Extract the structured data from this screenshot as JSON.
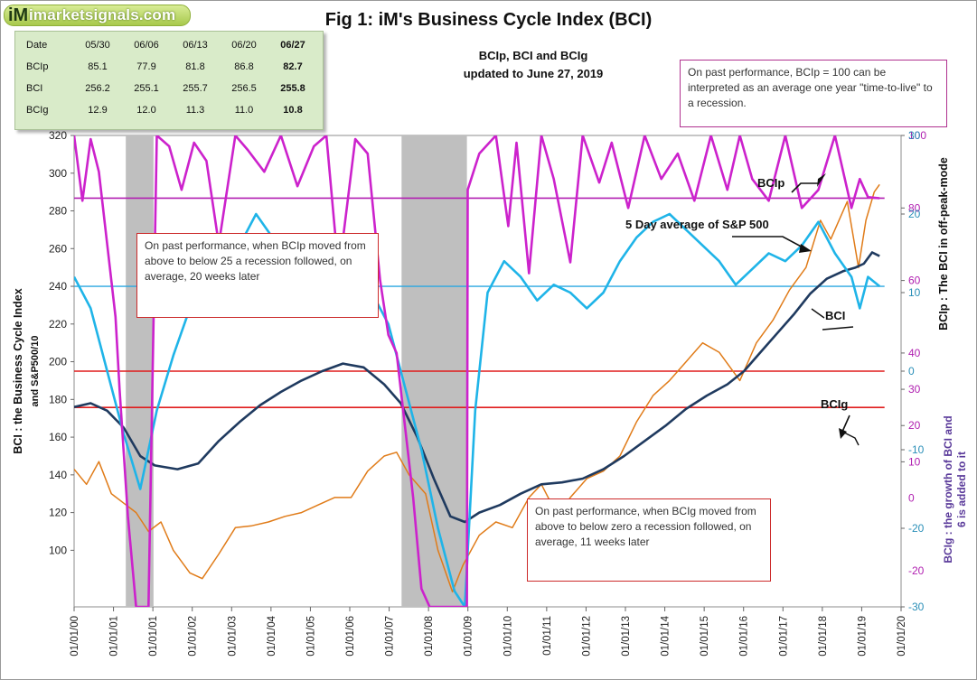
{
  "brand": {
    "logo_mark": "iM",
    "site_name": "imarketsignals.com"
  },
  "title": "Fig 1:  iM's Business Cycle Index (BCI)",
  "subtitle_line1": "BCIp, BCI and BCIg",
  "subtitle_line2": "updated to June 27, 2019",
  "data_table": {
    "header": [
      "Date",
      "05/30",
      "06/06",
      "06/13",
      "06/20",
      "06/27"
    ],
    "rows": [
      {
        "label": "BCIp",
        "values": [
          "85.1",
          "77.9",
          "81.8",
          "86.8",
          "82.7"
        ]
      },
      {
        "label": "BCI",
        "values": [
          "256.2",
          "255.1",
          "255.7",
          "256.5",
          "255.8"
        ]
      },
      {
        "label": "BCIg",
        "values": [
          "12.9",
          "12.0",
          "11.3",
          "11.0",
          "10.8"
        ]
      }
    ]
  },
  "notes": {
    "top_right": "On past performance, BCIp = 100  can be interpreted as an average one year \"time-to-live\" to a recession.",
    "left": "On past performance,  when BCIp moved from above to below 25 a recession followed, on average, 20 weeks later",
    "bottom": "On past performance,  when BCIg moved from above to below zero a recession followed, on average, 11 weeks later"
  },
  "annotations": {
    "bcip": "BCIp",
    "sp500": "5 Day average of  S&P 500",
    "bci": "BCI",
    "bcig": "BCIg"
  },
  "colors": {
    "bci": "#1f3a5f",
    "bcip": "#cc22cc",
    "bcig": "#1fb4e8",
    "sp500": "#e07b18",
    "threshold": "#e01c1c",
    "bcip_ref": "#b21fb2",
    "bcig_ref": "#2aa8e0",
    "recession": "#bfbfbf",
    "right_axis_bcip": "#b01fb0",
    "right_axis_bcig": "#2a8fb8",
    "right_title_bcig": "#5a3a9a"
  },
  "chart_data": {
    "type": "line",
    "x_ticks": [
      "01/01/00",
      "01/01/01",
      "01/01/01",
      "01/01/02",
      "01/01/03",
      "01/01/04",
      "01/01/05",
      "01/01/06",
      "01/01/07",
      "01/01/08",
      "01/01/09",
      "01/01/10",
      "01/01/11",
      "01/01/12",
      "01/01/13",
      "01/01/14",
      "01/01/15",
      "01/01/16",
      "01/01/17",
      "01/01/18",
      "01/01/19",
      "01/01/20"
    ],
    "x_range": [
      2000.0,
      2020.0
    ],
    "left_axis": {
      "title_line1": "BCI : the Business  Cycle  Index",
      "title_line2": "and   S&P500/10",
      "range": [
        70,
        320
      ],
      "ticks": [
        100,
        120,
        140,
        160,
        180,
        200,
        220,
        240,
        260,
        280,
        300,
        320
      ]
    },
    "right_axis_bcip": {
      "title": "BCIp :  The BCI in off-peak-mode",
      "range": [
        -30,
        100
      ],
      "ticks": [
        -30,
        -20,
        -10,
        0,
        10,
        20,
        30,
        40,
        60,
        80,
        100
      ]
    },
    "right_axis_bcig": {
      "title_line1": "BCIg :  the growth of BCI and",
      "title_line2": "6 is added to it",
      "range": [
        -30,
        30
      ],
      "ticks": [
        -30,
        -20,
        -10,
        0,
        10,
        20,
        30
      ]
    },
    "recessions": [
      [
        2001.25,
        2001.92
      ],
      [
        2007.92,
        2009.5
      ]
    ],
    "reference_lines": {
      "bcip_100": 100,
      "bcip_25": 25,
      "bcip_threshold_82": 82.7,
      "bcig_zero": 0,
      "bcig_10": 10.8
    },
    "series": [
      {
        "name": "BCI",
        "axis": "left",
        "x": [
          2000.0,
          2000.4,
          2000.8,
          2001.2,
          2001.6,
          2001.95,
          2002.5,
          2003.0,
          2003.5,
          2004.0,
          2004.5,
          2005.0,
          2005.5,
          2006.0,
          2006.5,
          2007.0,
          2007.5,
          2007.9,
          2008.3,
          2008.7,
          2009.1,
          2009.45,
          2009.8,
          2010.3,
          2010.8,
          2011.3,
          2011.8,
          2012.3,
          2012.8,
          2013.3,
          2013.8,
          2014.3,
          2014.8,
          2015.3,
          2015.8,
          2016.2,
          2016.6,
          2017.0,
          2017.4,
          2017.8,
          2018.2,
          2018.6,
          2018.9,
          2019.1,
          2019.3,
          2019.48
        ],
        "values": [
          176,
          178,
          174,
          165,
          150,
          145,
          143,
          146,
          158,
          168,
          177,
          184,
          190,
          195,
          199,
          197,
          188,
          178,
          160,
          138,
          118,
          115,
          120,
          124,
          130,
          135,
          136,
          138,
          143,
          150,
          158,
          166,
          175,
          182,
          188,
          195,
          205,
          215,
          225,
          236,
          244,
          248,
          250,
          252,
          258,
          256
        ]
      },
      {
        "name": "BCIp",
        "axis": "right_bcip",
        "x": [
          2000.0,
          2000.2,
          2000.4,
          2000.6,
          2000.8,
          2001.0,
          2001.1,
          2001.3,
          2001.5,
          2001.8,
          2002.0,
          2002.3,
          2002.6,
          2002.9,
          2003.2,
          2003.5,
          2003.9,
          2004.2,
          2004.6,
          2005.0,
          2005.4,
          2005.8,
          2006.1,
          2006.4,
          2006.8,
          2007.1,
          2007.4,
          2007.6,
          2007.8,
          2008.0,
          2008.2,
          2008.4,
          2008.6,
          2009.0,
          2009.5,
          2009.52,
          2009.8,
          2010.2,
          2010.5,
          2010.7,
          2011.0,
          2011.3,
          2011.6,
          2012.0,
          2012.3,
          2012.7,
          2013.0,
          2013.4,
          2013.8,
          2014.2,
          2014.6,
          2015.0,
          2015.4,
          2015.8,
          2016.1,
          2016.4,
          2016.8,
          2017.2,
          2017.6,
          2018.0,
          2018.4,
          2018.8,
          2019.0,
          2019.2,
          2019.48
        ],
        "values": [
          100,
          82,
          99,
          90,
          70,
          50,
          30,
          -5,
          -30,
          -30,
          100,
          97,
          85,
          98,
          93,
          70,
          100,
          96,
          90,
          100,
          86,
          97,
          100,
          62,
          99,
          95,
          60,
          45,
          40,
          20,
          0,
          -25,
          -30,
          -30,
          -30,
          85,
          95,
          100,
          75,
          98,
          62,
          100,
          88,
          65,
          100,
          87,
          98,
          80,
          100,
          88,
          95,
          82,
          100,
          85,
          100,
          88,
          82,
          100,
          80,
          85,
          100,
          80,
          88,
          83,
          82.7
        ]
      },
      {
        "name": "BCIg",
        "axis": "right_bcig",
        "x": [
          2000.0,
          2000.4,
          2000.8,
          2001.2,
          2001.6,
          2002.0,
          2002.4,
          2002.8,
          2003.2,
          2003.6,
          2004.0,
          2004.4,
          2004.8,
          2005.2,
          2005.6,
          2006.0,
          2006.4,
          2006.8,
          2007.2,
          2007.6,
          2008.0,
          2008.4,
          2008.8,
          2009.2,
          2009.45,
          2009.7,
          2010.0,
          2010.4,
          2010.8,
          2011.2,
          2011.6,
          2012.0,
          2012.4,
          2012.8,
          2013.2,
          2013.6,
          2014.0,
          2014.4,
          2014.8,
          2015.2,
          2015.6,
          2016.0,
          2016.4,
          2016.8,
          2017.2,
          2017.6,
          2018.0,
          2018.4,
          2018.8,
          2019.0,
          2019.2,
          2019.48
        ],
        "values": [
          12,
          8,
          0,
          -8,
          -15,
          -5,
          2,
          8,
          12,
          10,
          16,
          20,
          17,
          14,
          11,
          13,
          15,
          12,
          10,
          6,
          -2,
          -10,
          -20,
          -28,
          -30,
          -5,
          10,
          14,
          12,
          9,
          11,
          10,
          8,
          10,
          14,
          17,
          19,
          20,
          18,
          16,
          14,
          11,
          13,
          15,
          14,
          16,
          19,
          15,
          12,
          8,
          12,
          10.8
        ]
      },
      {
        "name": "5 Day average of  S&P 500",
        "axis": "left",
        "x": [
          2000.0,
          2000.3,
          2000.6,
          2000.9,
          2001.2,
          2001.5,
          2001.8,
          2002.1,
          2002.4,
          2002.8,
          2003.1,
          2003.5,
          2003.9,
          2004.3,
          2004.7,
          2005.1,
          2005.5,
          2005.9,
          2006.3,
          2006.7,
          2007.1,
          2007.5,
          2007.8,
          2008.1,
          2008.5,
          2008.8,
          2009.15,
          2009.4,
          2009.8,
          2010.2,
          2010.6,
          2011.0,
          2011.3,
          2011.7,
          2012.0,
          2012.4,
          2012.8,
          2013.2,
          2013.6,
          2014.0,
          2014.4,
          2014.8,
          2015.2,
          2015.6,
          2016.1,
          2016.5,
          2016.9,
          2017.3,
          2017.7,
          2018.05,
          2018.3,
          2018.7,
          2018.97,
          2019.15,
          2019.35,
          2019.48
        ],
        "values": [
          143,
          135,
          147,
          130,
          125,
          120,
          110,
          115,
          100,
          88,
          85,
          98,
          112,
          113,
          115,
          118,
          120,
          124,
          128,
          128,
          142,
          150,
          152,
          140,
          130,
          100,
          78,
          92,
          108,
          115,
          112,
          128,
          135,
          118,
          128,
          138,
          142,
          150,
          168,
          182,
          190,
          200,
          210,
          205,
          190,
          210,
          222,
          238,
          250,
          275,
          265,
          285,
          250,
          275,
          290,
          294
        ]
      }
    ]
  }
}
